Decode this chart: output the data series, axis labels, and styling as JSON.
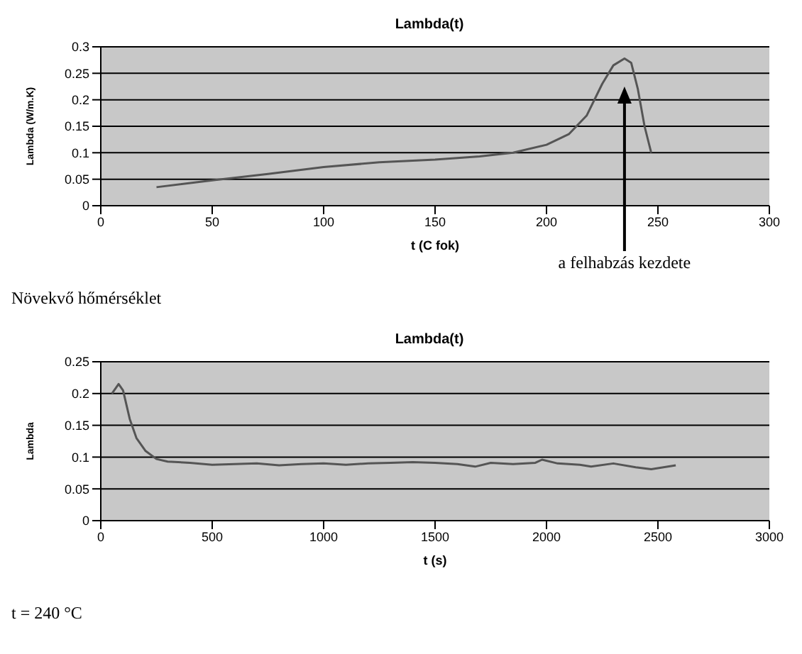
{
  "chart_data": [
    {
      "type": "line",
      "title": "Lambda(t)",
      "xlabel": "t (C fok)",
      "ylabel": "Lambda (W/m.K)",
      "xlim": [
        0,
        300
      ],
      "xticks": [
        0,
        50,
        100,
        150,
        200,
        250,
        300
      ],
      "ylim": [
        0,
        0.3
      ],
      "yticks": [
        0,
        0.05,
        0.1,
        0.15,
        0.2,
        0.25,
        0.3
      ],
      "grid": "y",
      "ref_lines": [
        {
          "axis": "x",
          "value": 235,
          "label": "a felhabzás kezdete",
          "color": "#000000"
        }
      ],
      "marker": "none",
      "line_style": "solid",
      "series": [
        {
          "color": "#555555",
          "x": [
            25,
            50,
            75,
            100,
            125,
            150,
            170,
            185,
            200,
            210,
            218,
            225,
            230,
            235,
            238,
            241,
            244,
            247
          ],
          "values": [
            0.035,
            0.048,
            0.06,
            0.073,
            0.082,
            0.087,
            0.093,
            0.1,
            0.115,
            0.135,
            0.17,
            0.23,
            0.265,
            0.278,
            0.27,
            0.22,
            0.15,
            0.1
          ]
        }
      ],
      "annotations": [
        "Növekvő hőmérséklet"
      ]
    },
    {
      "type": "line",
      "title": "Lambda(t)",
      "xlabel": "t (s)",
      "ylabel": "Lambda",
      "xlim": [
        0,
        3000
      ],
      "xticks": [
        0,
        500,
        1000,
        1500,
        2000,
        2500,
        3000
      ],
      "ylim": [
        0,
        0.25
      ],
      "yticks": [
        0,
        0.05,
        0.1,
        0.15,
        0.2,
        0.25
      ],
      "grid": "y",
      "marker": "none",
      "line_style": "solid",
      "series": [
        {
          "color": "#555555",
          "x": [
            50,
            80,
            100,
            130,
            160,
            200,
            250,
            300,
            400,
            500,
            600,
            700,
            800,
            900,
            1000,
            1100,
            1200,
            1300,
            1400,
            1500,
            1600,
            1680,
            1750,
            1850,
            1950,
            1980,
            2050,
            2150,
            2200,
            2300,
            2400,
            2470,
            2580
          ],
          "values": [
            0.2,
            0.215,
            0.205,
            0.16,
            0.13,
            0.11,
            0.097,
            0.093,
            0.091,
            0.088,
            0.089,
            0.09,
            0.087,
            0.089,
            0.09,
            0.088,
            0.09,
            0.091,
            0.092,
            0.091,
            0.089,
            0.085,
            0.091,
            0.089,
            0.091,
            0.096,
            0.09,
            0.088,
            0.085,
            0.09,
            0.084,
            0.081,
            0.087
          ]
        }
      ],
      "annotations": [
        "t = 240 °C"
      ]
    }
  ]
}
